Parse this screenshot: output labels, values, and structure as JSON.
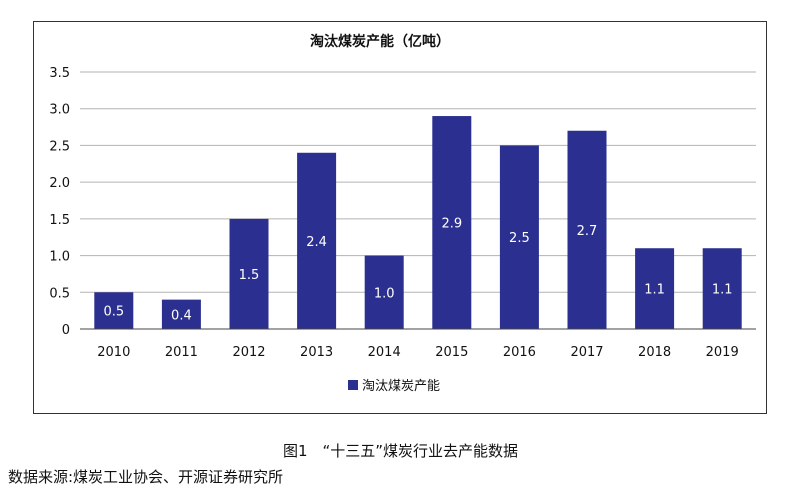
{
  "chart_data": {
    "type": "bar",
    "title": "淘汰煤炭产能（亿吨）",
    "categories": [
      "2010",
      "2011",
      "2012",
      "2013",
      "2014",
      "2015",
      "2016",
      "2017",
      "2018",
      "2019"
    ],
    "series": [
      {
        "name": "淘汰煤炭产能",
        "values": [
          0.5,
          0.4,
          1.5,
          2.4,
          1.0,
          2.9,
          2.5,
          2.7,
          1.1,
          1.1
        ],
        "color": "#2b2f8f"
      }
    ],
    "data_labels": [
      "0.5",
      "0.4",
      "1.5",
      "2.4",
      "1.0",
      "2.9",
      "2.5",
      "2.7",
      "1.1",
      "1.1"
    ],
    "y_ticks": [
      "0",
      "0.5",
      "1.0",
      "1.5",
      "2.0",
      "2.5",
      "3.0",
      "3.5"
    ],
    "ylim": [
      0,
      3.5
    ],
    "grid": true,
    "legend_position": "bottom"
  },
  "caption": "图1　“十三五”煤炭行业去产能数据",
  "source": "数据来源:煤炭工业协会、开源证券研究所"
}
